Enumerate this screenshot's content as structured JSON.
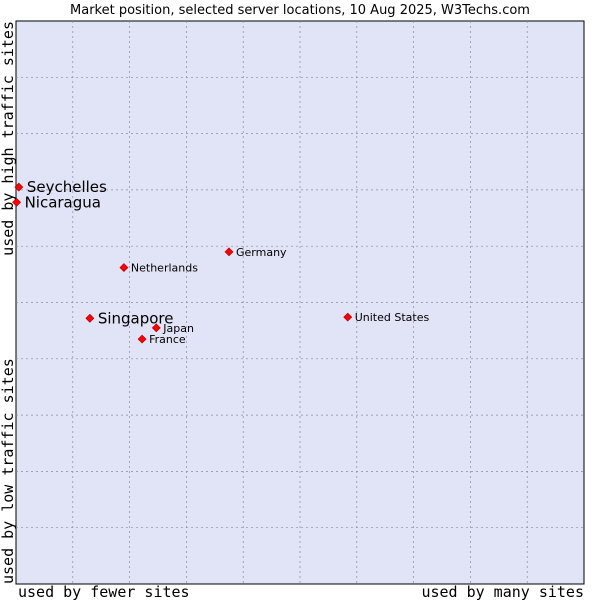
{
  "chart_data": {
    "type": "scatter",
    "title": "Market position, selected server locations, 10 Aug 2025, W3Techs.com",
    "xlabel_left": "used by fewer sites",
    "xlabel_right": "used by many sites",
    "ylabel_bottom": "used by low traffic sites",
    "ylabel_top": "used by high traffic sites",
    "xlim": [
      0,
      100
    ],
    "ylim": [
      0,
      100
    ],
    "grid": true,
    "colors": {
      "plot_background": "#e1e4f6",
      "grid": "#8a8aa0",
      "marker": "#ff0000"
    },
    "points": [
      {
        "label": "Seychelles",
        "x": 0.5,
        "y": 70.5,
        "emphasis": true,
        "label_side": "right"
      },
      {
        "label": "Nicaragua",
        "x": 0.1,
        "y": 67.8,
        "emphasis": true,
        "label_side": "right"
      },
      {
        "label": "Germany",
        "x": 37.5,
        "y": 59.0,
        "emphasis": false,
        "label_side": "right"
      },
      {
        "label": "Netherlands",
        "x": 19.0,
        "y": 56.2,
        "emphasis": false,
        "label_side": "right"
      },
      {
        "label": "Singapore",
        "x": 13.0,
        "y": 47.2,
        "emphasis": true,
        "label_side": "right"
      },
      {
        "label": "United States",
        "x": 58.4,
        "y": 47.4,
        "emphasis": false,
        "label_side": "right"
      },
      {
        "label": "Japan",
        "x": 24.7,
        "y": 45.5,
        "emphasis": false,
        "label_side": "right"
      },
      {
        "label": "France",
        "x": 22.2,
        "y": 43.5,
        "emphasis": false,
        "label_side": "right"
      }
    ]
  }
}
